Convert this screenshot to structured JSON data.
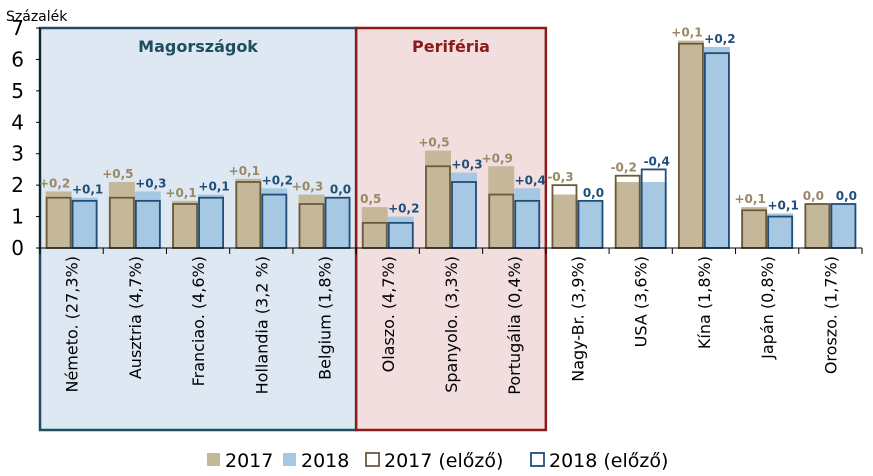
{
  "chart_data": {
    "type": "bar",
    "ylabel": "Százalék",
    "ylim": [
      0,
      7
    ],
    "yticks": [
      0,
      1,
      2,
      3,
      4,
      5,
      6,
      7
    ],
    "categories": [
      "Németo. (27,3%)",
      "Ausztria (4,7%)",
      "Franciao. (4,6%)",
      "Hollandia (3,2 %)",
      "Belgium (1,8%)",
      "Olaszo. (4,7%)",
      "Spanyolo. (3,3%)",
      "Portugália (0,4%)",
      "Nagy-Br. (3,9%)",
      "USA (3,6%)",
      "Kína (1,8%)",
      "Japán (0,8%)",
      "Oroszo. (1,7%)"
    ],
    "series": [
      {
        "name": "2017",
        "values": [
          1.8,
          2.1,
          1.5,
          2.2,
          1.7,
          1.3,
          3.1,
          2.6,
          1.7,
          2.1,
          6.6,
          1.3,
          1.4
        ]
      },
      {
        "name": "2018",
        "values": [
          1.6,
          1.8,
          1.7,
          1.9,
          1.6,
          1.0,
          2.4,
          1.9,
          1.5,
          2.1,
          6.4,
          1.1,
          1.4
        ]
      },
      {
        "name": "2017 (előző)",
        "values": [
          1.6,
          1.6,
          1.4,
          2.1,
          1.4,
          0.8,
          2.6,
          1.7,
          2.0,
          2.3,
          6.5,
          1.2,
          1.4
        ]
      },
      {
        "name": "2018 (előző)",
        "values": [
          1.5,
          1.5,
          1.6,
          1.7,
          1.6,
          0.8,
          2.1,
          1.5,
          1.5,
          2.5,
          6.2,
          1.0,
          1.4
        ]
      }
    ],
    "labels_2017": [
      "+0,2",
      "+0,5",
      "+0,1",
      "+0,1",
      "+0,3",
      "0,5",
      "+0,5",
      "+0,9",
      "-0,3",
      "-0,2",
      "+0,1",
      "+0,1",
      "0,0"
    ],
    "labels_2018": [
      "+0,1",
      "+0,3",
      "+0,1",
      "+0,2",
      "0,0",
      "+0,2",
      "+0,3",
      "+0,4",
      "0,0",
      "-0,4",
      "+0,2",
      "+0,1",
      "0,0"
    ],
    "groups": [
      {
        "label": "Magországok",
        "color": "#1f4e5f",
        "first": 0,
        "last": 4
      },
      {
        "label": "Periféria",
        "color": "#8b1a1a",
        "first": 5,
        "last": 7
      }
    ],
    "colors": {
      "c2017": "#c4b79a",
      "c2018": "#a7c8e3",
      "prev2017": "#6b5a3a",
      "prev2018": "#1f4e79",
      "label2017": "#9a8866",
      "label2018": "#1f4e79",
      "magBg": "#dde8f2",
      "perBg": "#f2dede"
    },
    "legend": [
      "2017",
      "2018",
      "2017 (előző)",
      "2018 (előző)"
    ],
    "legend_position": "bottom",
    "grid": false
  }
}
